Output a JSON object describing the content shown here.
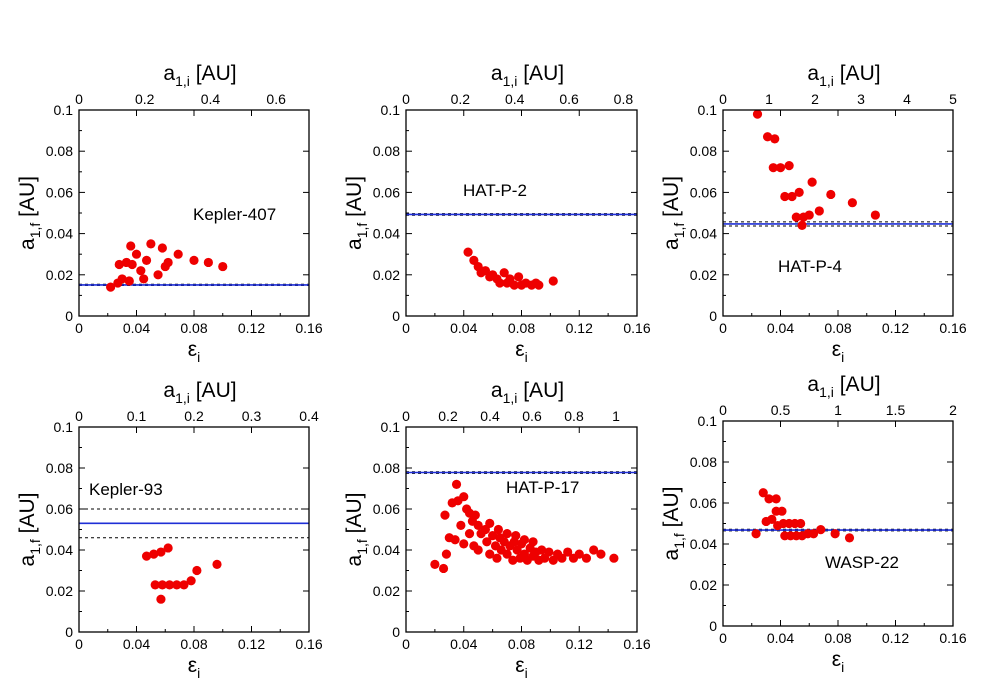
{
  "chart_data": [
    {
      "type": "scatter",
      "annotation": "Kepler-407",
      "xlabel": "ε",
      "xlabel_sub": "i",
      "ylabel": "a",
      "ylabel_sub": "1,f",
      "ylabel_unit": " [AU]",
      "top_label": "a",
      "top_label_sub": "1,i",
      "top_label_unit": " [AU]",
      "xlim": [
        0,
        0.16
      ],
      "ylim": [
        0,
        0.1
      ],
      "toplim": [
        0,
        0.7
      ],
      "xticks": [
        "0",
        "0.04",
        "0.08",
        "0.12",
        "0.16"
      ],
      "yticks": [
        "0",
        "0.02",
        "0.04",
        "0.06",
        "0.08",
        "0.1"
      ],
      "topticks": [
        "0",
        "0.2",
        "0.4",
        "0.6"
      ],
      "hline": 0.0151,
      "dashed": [
        0.0148,
        0.0154
      ],
      "points": [
        [
          0.022,
          0.014
        ],
        [
          0.027,
          0.016
        ],
        [
          0.03,
          0.018
        ],
        [
          0.035,
          0.017
        ],
        [
          0.028,
          0.025
        ],
        [
          0.033,
          0.026
        ],
        [
          0.037,
          0.025
        ],
        [
          0.04,
          0.03
        ],
        [
          0.036,
          0.034
        ],
        [
          0.043,
          0.022
        ],
        [
          0.047,
          0.027
        ],
        [
          0.05,
          0.035
        ],
        [
          0.055,
          0.02
        ],
        [
          0.06,
          0.024
        ],
        [
          0.058,
          0.033
        ],
        [
          0.062,
          0.026
        ],
        [
          0.069,
          0.03
        ],
        [
          0.08,
          0.027
        ],
        [
          0.09,
          0.026
        ],
        [
          0.1,
          0.024
        ],
        [
          0.045,
          0.018
        ]
      ]
    },
    {
      "type": "scatter",
      "annotation": "HAT-P-2",
      "xlabel": "ε",
      "xlabel_sub": "i",
      "ylabel": "a",
      "ylabel_sub": "1,f",
      "ylabel_unit": " [AU]",
      "top_label": "a",
      "top_label_sub": "1,i",
      "top_label_unit": " [AU]",
      "xlim": [
        0,
        0.16
      ],
      "ylim": [
        0,
        0.1
      ],
      "toplim": [
        0,
        0.85
      ],
      "xticks": [
        "0",
        "0.04",
        "0.08",
        "0.12",
        "0.16"
      ],
      "yticks": [
        "0",
        "0.02",
        "0.04",
        "0.06",
        "0.08",
        "0.1"
      ],
      "topticks": [
        "0",
        "0.2",
        "0.4",
        "0.6",
        "0.8"
      ],
      "hline": 0.0493,
      "dashed": [
        0.0489,
        0.0497
      ],
      "points": [
        [
          0.043,
          0.031
        ],
        [
          0.047,
          0.027
        ],
        [
          0.05,
          0.024
        ],
        [
          0.052,
          0.021
        ],
        [
          0.055,
          0.022
        ],
        [
          0.058,
          0.019
        ],
        [
          0.06,
          0.02
        ],
        [
          0.063,
          0.018
        ],
        [
          0.065,
          0.016
        ],
        [
          0.068,
          0.021
        ],
        [
          0.07,
          0.016
        ],
        [
          0.072,
          0.018
        ],
        [
          0.075,
          0.015
        ],
        [
          0.078,
          0.019
        ],
        [
          0.08,
          0.015
        ],
        [
          0.083,
          0.016
        ],
        [
          0.087,
          0.015
        ],
        [
          0.09,
          0.016
        ],
        [
          0.092,
          0.015
        ],
        [
          0.102,
          0.017
        ]
      ]
    },
    {
      "type": "scatter",
      "annotation": "HAT-P-4",
      "xlabel": "ε",
      "xlabel_sub": "i",
      "ylabel": "a",
      "ylabel_sub": "1,f",
      "ylabel_unit": " [AU]",
      "top_label": "a",
      "top_label_sub": "1,i",
      "top_label_unit": " [AU]",
      "xlim": [
        0,
        0.16
      ],
      "ylim": [
        0,
        0.1
      ],
      "toplim": [
        0,
        5
      ],
      "xticks": [
        "0",
        "0.04",
        "0.08",
        "0.12",
        "0.16"
      ],
      "yticks": [
        "0",
        "0.02",
        "0.04",
        "0.06",
        "0.08",
        "0.1"
      ],
      "topticks": [
        "0",
        "1",
        "2",
        "3",
        "4",
        "5"
      ],
      "hline": 0.0447,
      "dashed": [
        0.0437,
        0.0457
      ],
      "points": [
        [
          0.024,
          0.098
        ],
        [
          0.031,
          0.087
        ],
        [
          0.036,
          0.086
        ],
        [
          0.035,
          0.072
        ],
        [
          0.04,
          0.072
        ],
        [
          0.046,
          0.073
        ],
        [
          0.043,
          0.058
        ],
        [
          0.048,
          0.058
        ],
        [
          0.053,
          0.06
        ],
        [
          0.051,
          0.048
        ],
        [
          0.056,
          0.048
        ],
        [
          0.055,
          0.044
        ],
        [
          0.062,
          0.065
        ],
        [
          0.06,
          0.049
        ],
        [
          0.067,
          0.051
        ],
        [
          0.075,
          0.059
        ],
        [
          0.09,
          0.055
        ],
        [
          0.106,
          0.049
        ]
      ]
    },
    {
      "type": "scatter",
      "annotation": "Kepler-93",
      "xlabel": "ε",
      "xlabel_sub": "i",
      "ylabel": "a",
      "ylabel_sub": "1,f",
      "ylabel_unit": " [AU]",
      "top_label": "a",
      "top_label_sub": "1,i",
      "top_label_unit": " [AU]",
      "xlim": [
        0,
        0.16
      ],
      "ylim": [
        0,
        0.1
      ],
      "toplim": [
        0,
        0.4
      ],
      "xticks": [
        "0",
        "0.04",
        "0.08",
        "0.12",
        "0.16"
      ],
      "yticks": [
        "0",
        "0.02",
        "0.04",
        "0.06",
        "0.08",
        "0.1"
      ],
      "topticks": [
        "0",
        "0.1",
        "0.2",
        "0.3",
        "0.4"
      ],
      "hline": 0.053,
      "dashed": [
        0.046,
        0.06
      ],
      "points": [
        [
          0.047,
          0.037
        ],
        [
          0.052,
          0.038
        ],
        [
          0.057,
          0.039
        ],
        [
          0.062,
          0.041
        ],
        [
          0.053,
          0.023
        ],
        [
          0.058,
          0.023
        ],
        [
          0.063,
          0.023
        ],
        [
          0.068,
          0.023
        ],
        [
          0.073,
          0.023
        ],
        [
          0.078,
          0.025
        ],
        [
          0.057,
          0.016
        ],
        [
          0.082,
          0.03
        ],
        [
          0.096,
          0.033
        ]
      ]
    },
    {
      "type": "scatter",
      "annotation": "HAT-P-17",
      "xlabel": "ε",
      "xlabel_sub": "i",
      "ylabel": "a",
      "ylabel_sub": "1,f",
      "ylabel_unit": " [AU]",
      "top_label": "a",
      "top_label_sub": "1,i",
      "top_label_unit": " [AU]",
      "xlim": [
        0,
        0.16
      ],
      "ylim": [
        0,
        0.1
      ],
      "toplim": [
        0,
        1.1
      ],
      "xticks": [
        "0",
        "0.04",
        "0.08",
        "0.12",
        "0.16"
      ],
      "yticks": [
        "0",
        "0.02",
        "0.04",
        "0.06",
        "0.08",
        "0.1"
      ],
      "topticks": [
        "0",
        "0.2",
        "0.4",
        "0.6",
        "0.8",
        "1"
      ],
      "hline": 0.0778,
      "dashed": [
        0.0774,
        0.0782
      ],
      "points": [
        [
          0.02,
          0.033
        ],
        [
          0.026,
          0.031
        ],
        [
          0.028,
          0.038
        ],
        [
          0.03,
          0.046
        ],
        [
          0.027,
          0.057
        ],
        [
          0.032,
          0.063
        ],
        [
          0.035,
          0.072
        ],
        [
          0.036,
          0.064
        ],
        [
          0.04,
          0.066
        ],
        [
          0.042,
          0.06
        ],
        [
          0.038,
          0.052
        ],
        [
          0.034,
          0.045
        ],
        [
          0.04,
          0.043
        ],
        [
          0.044,
          0.058
        ],
        [
          0.046,
          0.054
        ],
        [
          0.044,
          0.048
        ],
        [
          0.048,
          0.057
        ],
        [
          0.05,
          0.052
        ],
        [
          0.052,
          0.048
        ],
        [
          0.047,
          0.042
        ],
        [
          0.05,
          0.04
        ],
        [
          0.055,
          0.05
        ],
        [
          0.056,
          0.044
        ],
        [
          0.058,
          0.038
        ],
        [
          0.06,
          0.047
        ],
        [
          0.062,
          0.042
        ],
        [
          0.063,
          0.036
        ],
        [
          0.065,
          0.046
        ],
        [
          0.066,
          0.04
        ],
        [
          0.068,
          0.044
        ],
        [
          0.07,
          0.038
        ],
        [
          0.072,
          0.042
        ],
        [
          0.074,
          0.035
        ],
        [
          0.075,
          0.044
        ],
        [
          0.077,
          0.04
        ],
        [
          0.079,
          0.036
        ],
        [
          0.08,
          0.043
        ],
        [
          0.082,
          0.038
        ],
        [
          0.084,
          0.035
        ],
        [
          0.086,
          0.041
        ],
        [
          0.088,
          0.037
        ],
        [
          0.09,
          0.039
        ],
        [
          0.092,
          0.035
        ],
        [
          0.094,
          0.04
        ],
        [
          0.096,
          0.036
        ],
        [
          0.099,
          0.039
        ],
        [
          0.102,
          0.035
        ],
        [
          0.105,
          0.038
        ],
        [
          0.108,
          0.036
        ],
        [
          0.112,
          0.039
        ],
        [
          0.116,
          0.036
        ],
        [
          0.12,
          0.038
        ],
        [
          0.125,
          0.036
        ],
        [
          0.13,
          0.04
        ],
        [
          0.135,
          0.038
        ],
        [
          0.144,
          0.036
        ],
        [
          0.058,
          0.053
        ],
        [
          0.064,
          0.05
        ],
        [
          0.07,
          0.048
        ],
        [
          0.076,
          0.047
        ],
        [
          0.082,
          0.045
        ],
        [
          0.088,
          0.044
        ]
      ]
    },
    {
      "type": "scatter",
      "annotation": "WASP-22",
      "xlabel": "ε",
      "xlabel_sub": "i",
      "ylabel": "a",
      "ylabel_sub": "1,f",
      "ylabel_unit": " [AU]",
      "top_label": "a",
      "top_label_sub": "1,i",
      "top_label_unit": " [AU]",
      "xlim": [
        0,
        0.16
      ],
      "ylim": [
        0,
        0.1
      ],
      "toplim": [
        0,
        2
      ],
      "xticks": [
        "0",
        "0.04",
        "0.08",
        "0.12",
        "0.16"
      ],
      "yticks": [
        "0",
        "0.02",
        "0.04",
        "0.06",
        "0.08",
        "0.1"
      ],
      "topticks": [
        "0",
        "0.5",
        "1",
        "1.5",
        "2"
      ],
      "hline": 0.0468,
      "dashed": [
        0.0464,
        0.0472
      ],
      "points": [
        [
          0.023,
          0.045
        ],
        [
          0.028,
          0.065
        ],
        [
          0.032,
          0.062
        ],
        [
          0.037,
          0.062
        ],
        [
          0.03,
          0.051
        ],
        [
          0.034,
          0.052
        ],
        [
          0.037,
          0.056
        ],
        [
          0.041,
          0.056
        ],
        [
          0.038,
          0.049
        ],
        [
          0.042,
          0.05
        ],
        [
          0.046,
          0.05
        ],
        [
          0.05,
          0.05
        ],
        [
          0.054,
          0.05
        ],
        [
          0.043,
          0.044
        ],
        [
          0.047,
          0.044
        ],
        [
          0.051,
          0.044
        ],
        [
          0.055,
          0.044
        ],
        [
          0.059,
          0.045
        ],
        [
          0.063,
          0.045
        ],
        [
          0.068,
          0.047
        ],
        [
          0.078,
          0.045
        ],
        [
          0.088,
          0.043
        ]
      ]
    }
  ]
}
